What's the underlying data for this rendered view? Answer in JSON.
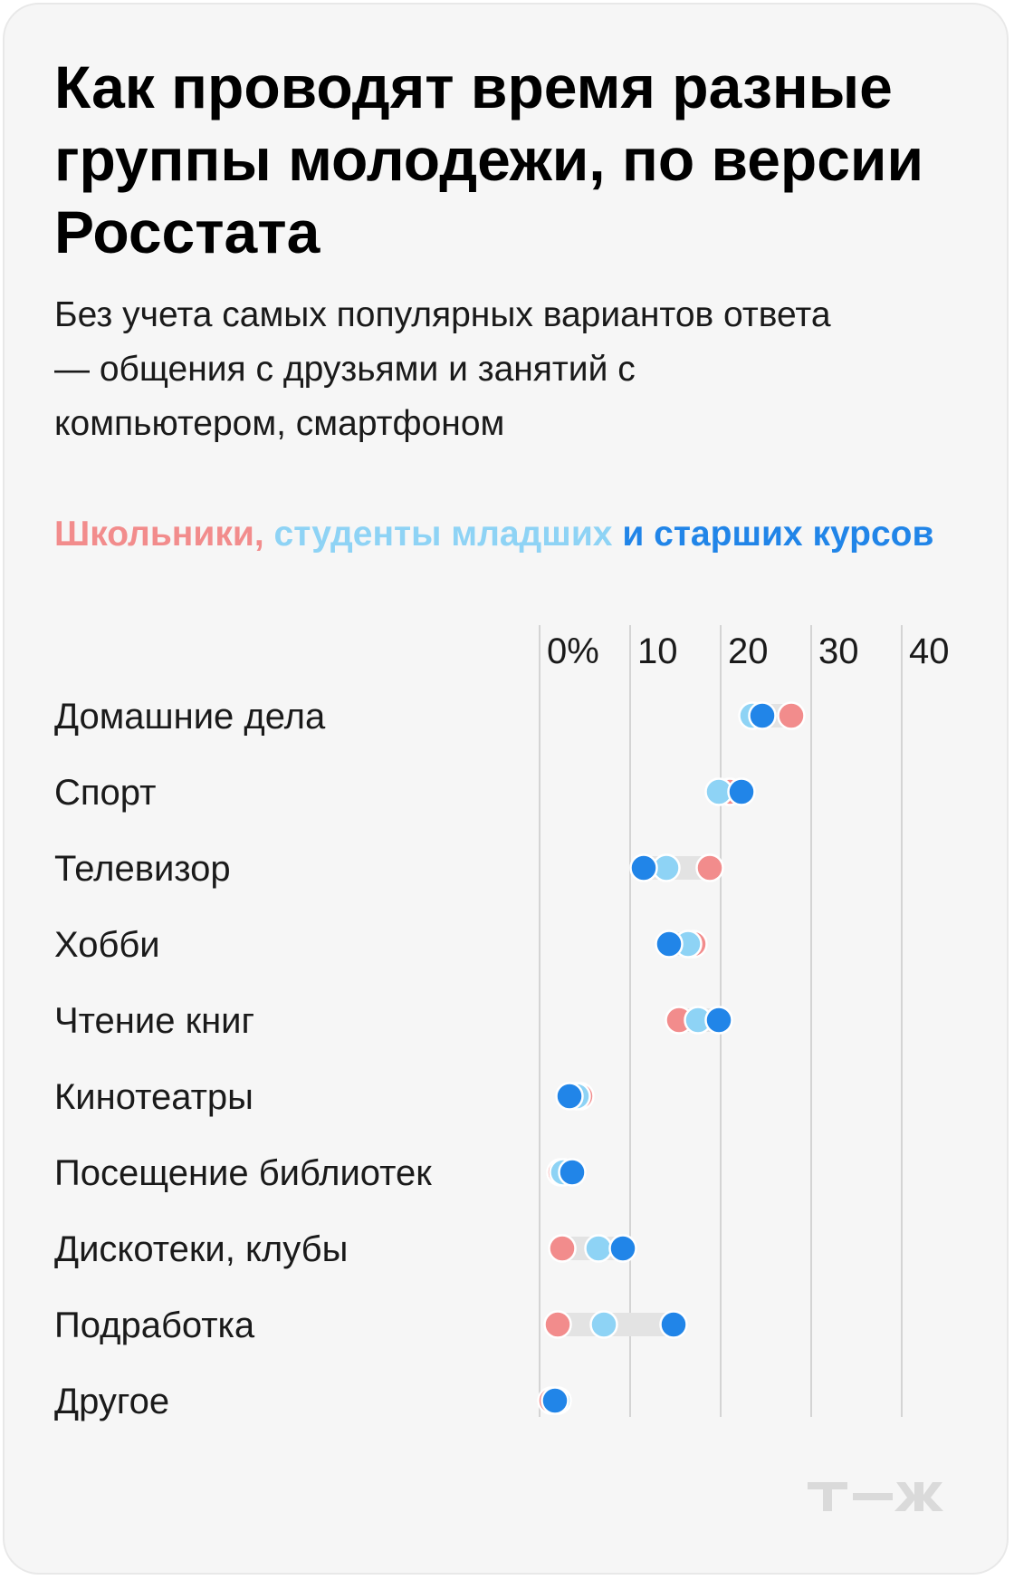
{
  "title": "Как проводят время разные группы молодежи, по версии Росстата",
  "subtitle": "Без учета самых популярных вариантов ответа — общения с друзьями и занятий с компьютером, смартфоном",
  "legend": {
    "part1": "Школьники,",
    "part2": "студенты младших",
    "part3": "и старших курсов"
  },
  "colors": {
    "schoolchildren": "#f28c8c",
    "junior_students": "#8ed3f5",
    "senior_students": "#2185e8",
    "range_bar": "#e3e3e3",
    "gridline": "#d4d4d4"
  },
  "logo_text": "т—ж",
  "chart_data": {
    "type": "dot",
    "xlim": [
      0,
      40
    ],
    "x_ticks": [
      "0%",
      "10",
      "20",
      "30",
      "40"
    ],
    "x_tick_values": [
      0,
      10,
      20,
      30,
      40
    ],
    "categories": [
      "Домашние дела",
      "Спорт",
      "Телевизор",
      "Хобби",
      "Чтение книг",
      "Кинотеатры",
      "Посещение библиотек",
      "Дискотеки, клубы",
      "Подработка",
      "Другое"
    ],
    "series": [
      {
        "name": "Школьники",
        "values": [
          27.8,
          21.0,
          18.8,
          17.0,
          15.4,
          4.5,
          2.3,
          2.5,
          2.0,
          1.3
        ]
      },
      {
        "name": "студенты младших",
        "values": [
          23.5,
          19.8,
          14.0,
          16.4,
          17.5,
          4.1,
          2.6,
          6.5,
          7.1,
          2.0
        ]
      },
      {
        "name": "и старших курсов",
        "values": [
          24.6,
          22.3,
          11.5,
          14.3,
          19.8,
          3.3,
          3.6,
          9.2,
          14.8,
          1.7
        ]
      }
    ]
  }
}
